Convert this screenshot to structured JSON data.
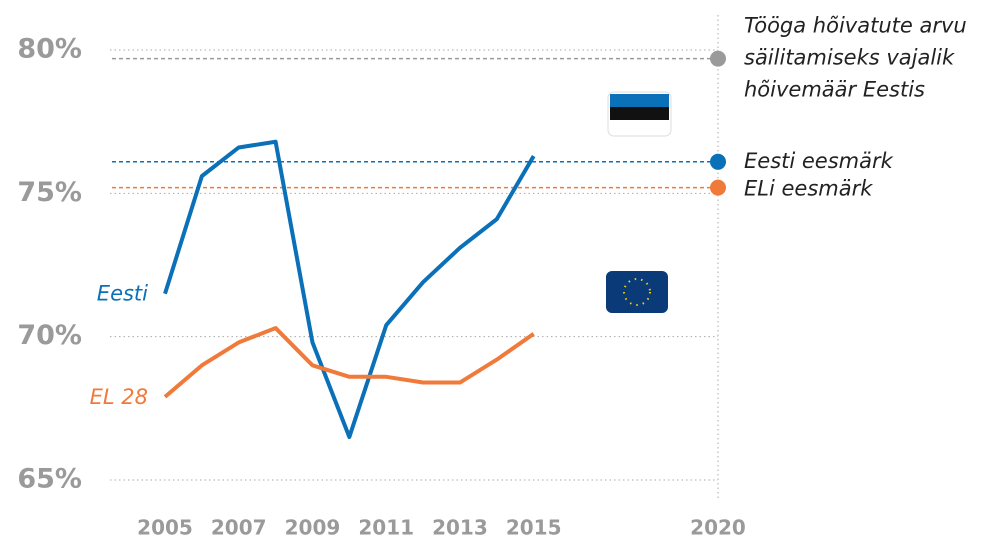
{
  "chart_data": {
    "type": "line",
    "x": [
      2005,
      2006,
      2007,
      2008,
      2009,
      2010,
      2011,
      2012,
      2013,
      2014,
      2015
    ],
    "series": [
      {
        "name": "Eesti",
        "color": "#0a70b8",
        "values": [
          71.5,
          75.6,
          76.6,
          76.8,
          69.8,
          66.5,
          70.4,
          71.9,
          73.1,
          74.1,
          76.3
        ]
      },
      {
        "name": "EL 28",
        "color": "#f07a3a",
        "values": [
          67.9,
          69.0,
          69.8,
          70.3,
          69.0,
          68.6,
          68.6,
          68.4,
          68.4,
          69.2,
          70.1
        ]
      }
    ],
    "reference_lines": [
      {
        "label": [
          "Tööga hõivatute arvu",
          "säilitamiseks vajalik",
          "hõivemäär Eestis"
        ],
        "value": 79.7,
        "color": "#9a9a9a"
      },
      {
        "label": [
          "Eesti eesmärk"
        ],
        "value": 76.1,
        "color": "#0a70b8"
      },
      {
        "label": [
          "ELi eesmärk"
        ],
        "value": 75.2,
        "color": "#f07a3a"
      }
    ],
    "xlim": [
      2005,
      2020
    ],
    "xticks": [
      2005,
      2007,
      2009,
      2011,
      2013,
      2015,
      2020
    ],
    "ylim": [
      65,
      80
    ],
    "yticks": [
      {
        "value": 65,
        "label": "65%"
      },
      {
        "value": 70,
        "label": "70%"
      },
      {
        "value": 75,
        "label": "75%"
      },
      {
        "value": 80,
        "label": "80%"
      }
    ],
    "grid": true
  }
}
